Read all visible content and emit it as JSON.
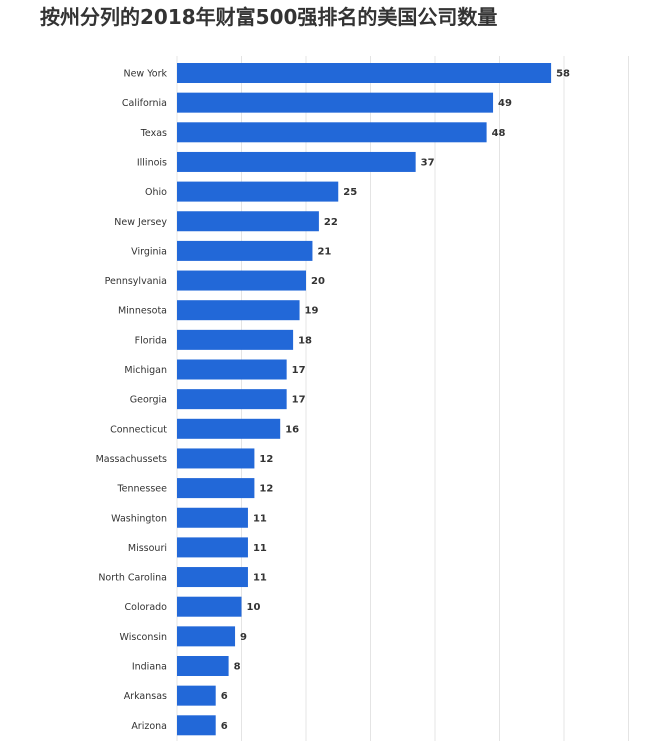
{
  "title": "按州分列的2018年财富500强排名的美国公司数量",
  "colors": {
    "bar": "#2268d8",
    "grid": "#e4e4e4",
    "background": "#ffffff"
  },
  "chart_data": {
    "type": "bar",
    "orientation": "horizontal",
    "title": "按州分列的2018年财富500强排名的美国公司数量",
    "xlabel": "",
    "ylabel": "",
    "xlim": [
      0,
      70
    ],
    "grid": true,
    "legend": "none",
    "categories": [
      "New York",
      "California",
      "Texas",
      "Illinois",
      "Ohio",
      "New Jersey",
      "Virginia",
      "Pennsylvania",
      "Minnesota",
      "Florida",
      "Michigan",
      "Georgia",
      "Connecticut",
      "Massachussets",
      "Tennessee",
      "Washington",
      "Missouri",
      "North Carolina",
      "Colorado",
      "Wisconsin",
      "Indiana",
      "Arkansas",
      "Arizona"
    ],
    "values": [
      58,
      49,
      48,
      37,
      25,
      22,
      21,
      20,
      19,
      18,
      17,
      17,
      16,
      12,
      12,
      11,
      11,
      11,
      10,
      9,
      8,
      6,
      6
    ]
  }
}
